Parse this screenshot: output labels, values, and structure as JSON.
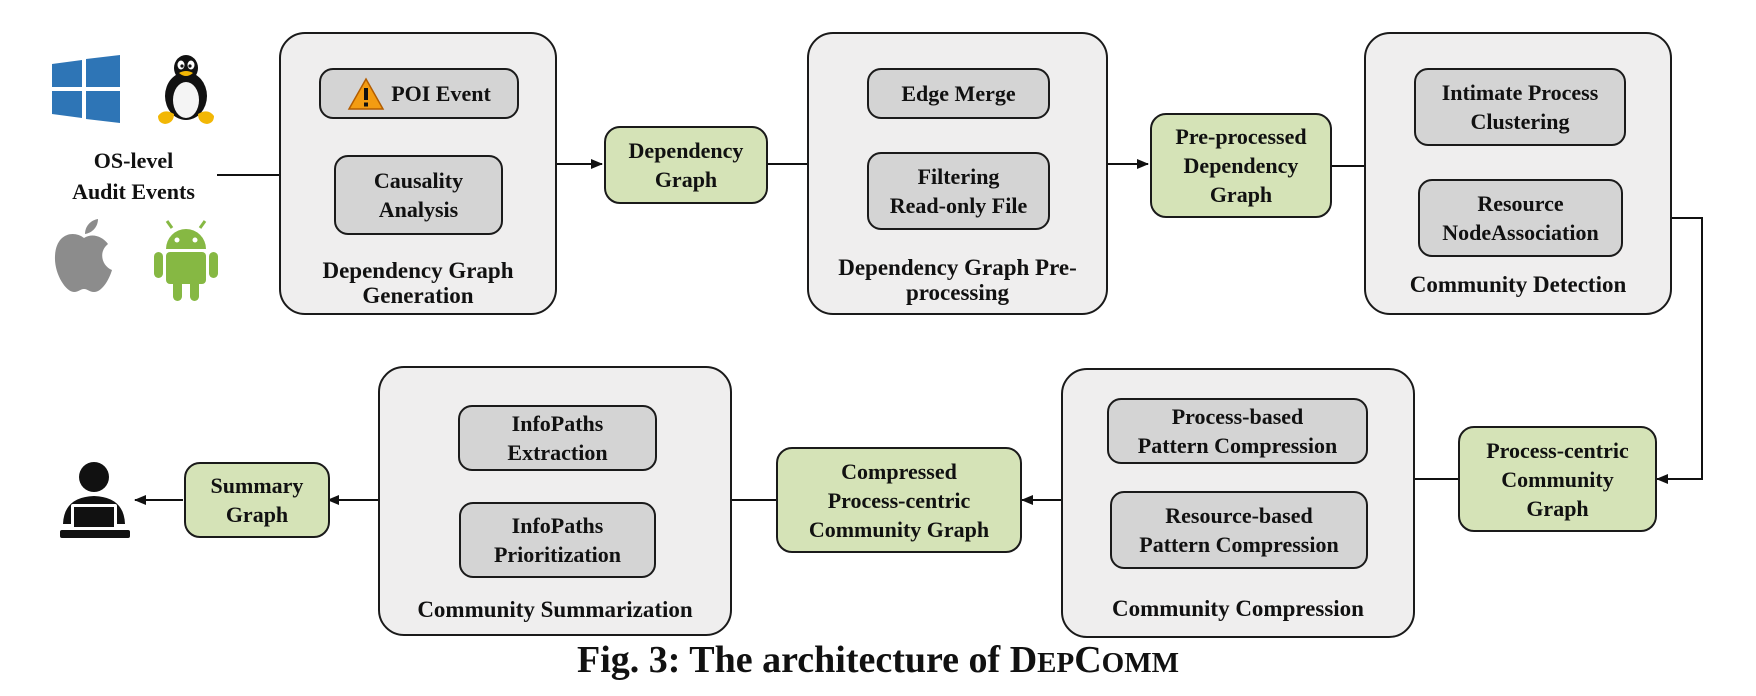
{
  "inputs": {
    "label": "OS-level\nAudit Events",
    "icons": [
      "windows-logo-icon",
      "linux-tux-icon",
      "apple-logo-icon",
      "android-logo-icon"
    ]
  },
  "panels": {
    "generation": {
      "title": "Dependency Graph\nGeneration",
      "poi_event": "POI Event",
      "causality": "Causality\nAnalysis"
    },
    "preprocessing": {
      "title": "Dependency Graph\nPre-processing",
      "edge_merge": "Edge Merge",
      "filtering": "Filtering\nRead-only File"
    },
    "detection": {
      "title": "Community Detection",
      "clustering": "Intimate Process\nClustering",
      "association": "Resource\nNodeAssociation"
    },
    "compression": {
      "title": "Community Compression",
      "process_based": "Process-based\nPattern Compression",
      "resource_based": "Resource-based\nPattern Compression"
    },
    "summarization": {
      "title": "Community Summarization",
      "extraction": "InfoPaths\nExtraction",
      "prioritization": "InfoPaths\nPrioritization"
    }
  },
  "outputs": {
    "dependency_graph": "Dependency\nGraph",
    "preprocessed_graph": "Pre-processed\nDependency\nGraph",
    "process_centric": "Process-centric\nCommunity\nGraph",
    "compressed": "Compressed\nProcess-centric\nCommunity Graph",
    "summary": "Summary\nGraph"
  },
  "end_user": "analyst-at-laptop-icon",
  "caption": {
    "prefix": "Fig. 3: The architecture of ",
    "n1_big": "D",
    "n1_small": "EP",
    "n2_big": "C",
    "n2_small": "OMM"
  },
  "colors": {
    "stage_box": "#d4d4d4",
    "output_box": "#d5e3b7",
    "panel_bg": "#efeeee"
  }
}
